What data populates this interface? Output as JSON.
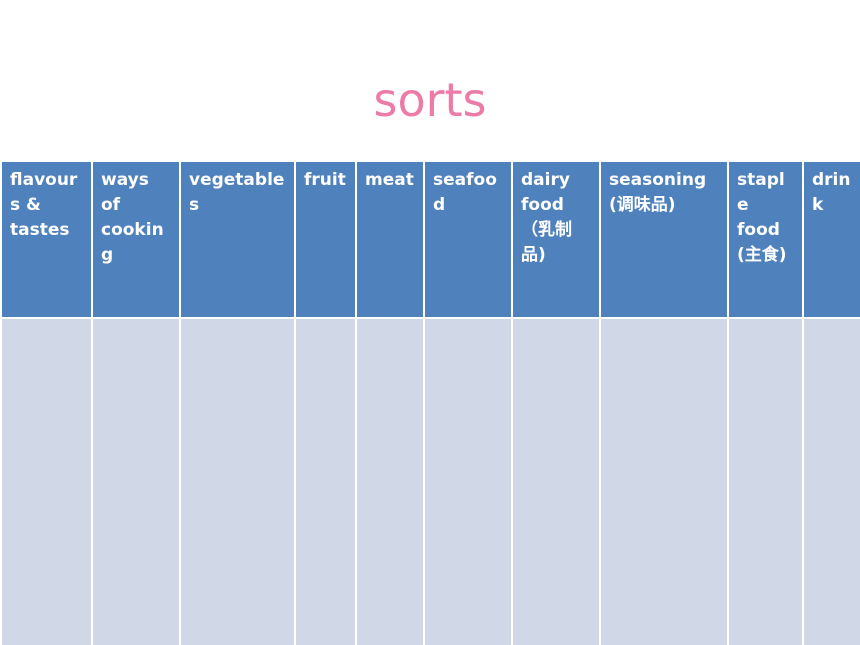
{
  "slide": {
    "title": "sorts",
    "colors": {
      "title": "#ec7ba8",
      "header_bg": "#4f81bd",
      "body_bg": "#d0d8e8",
      "header_text": "#ffffff"
    }
  },
  "table": {
    "columns": [
      {
        "label": "flavours & tastes"
      },
      {
        "label": "ways of cooking"
      },
      {
        "label": "vegetables"
      },
      {
        "label": "fruit"
      },
      {
        "label": "meat"
      },
      {
        "label": "seafood"
      },
      {
        "label": "dairy food（乳制品)"
      },
      {
        "label": "seasoning (调味品)"
      },
      {
        "label": "staple food (主食)"
      },
      {
        "label": "drink"
      }
    ],
    "rows": [
      [
        "",
        "",
        "",
        "",
        "",
        "",
        "",
        "",
        "",
        ""
      ]
    ]
  }
}
